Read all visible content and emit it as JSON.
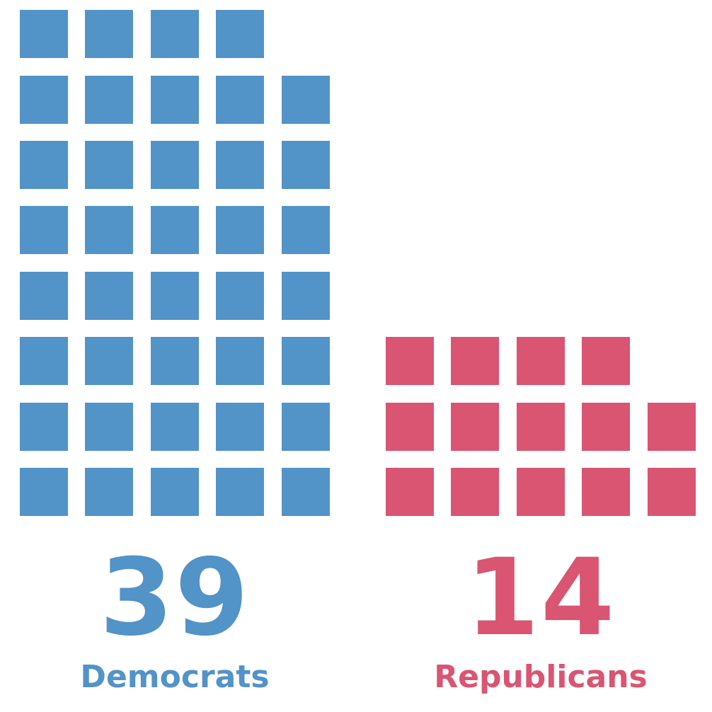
{
  "chart_data": {
    "type": "waffle",
    "unit": "seat",
    "columns": 5,
    "series": [
      {
        "name": "Democrats",
        "value": 39,
        "color": "#5293c8"
      },
      {
        "name": "Republicans",
        "value": 14,
        "color": "#d95572"
      }
    ]
  },
  "labels": {
    "democrats": {
      "count": "39",
      "name": "Democrats"
    },
    "republicans": {
      "count": "14",
      "name": "Republicans"
    }
  }
}
